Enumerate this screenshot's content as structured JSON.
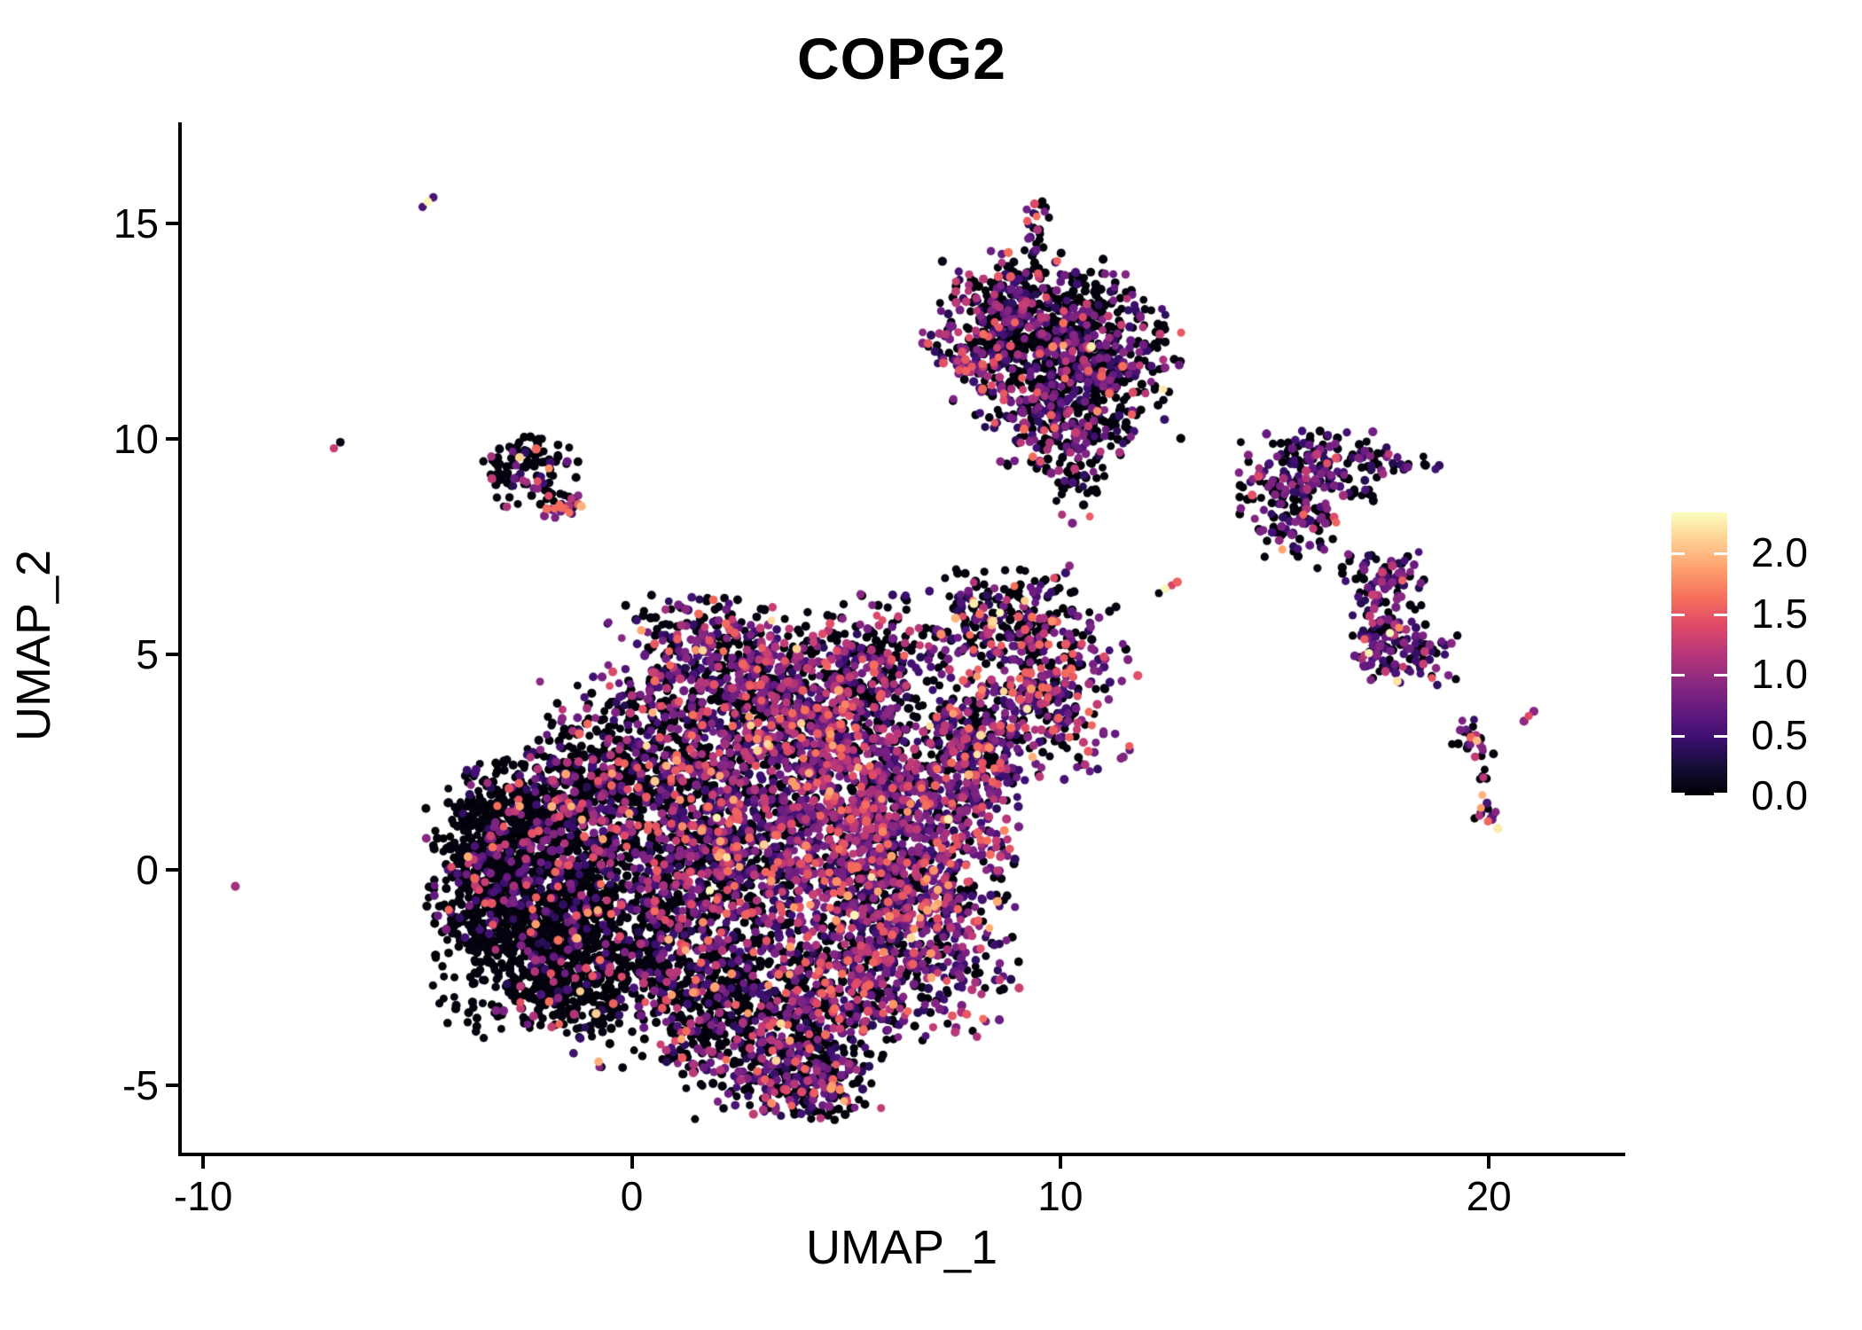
{
  "title": "COPG2",
  "chart_data": {
    "type": "scatter",
    "title": "COPG2",
    "xlabel": "UMAP_1",
    "ylabel": "UMAP_2",
    "x_ticks": [
      -10,
      0,
      10,
      20
    ],
    "x_tick_labels": [
      "-10",
      "0",
      "10",
      "20"
    ],
    "y_ticks": [
      -5,
      0,
      5,
      10,
      15
    ],
    "y_tick_labels": [
      "-5",
      "0",
      "5",
      "10",
      "15"
    ],
    "x_range": [
      -10.5,
      23.1
    ],
    "y_range": [
      -6.6,
      17.3
    ],
    "grid": false,
    "legend_position": "right",
    "point_radius_px": 4.7,
    "colorbar": {
      "colormap_name": "magma",
      "domain": [
        0,
        2.33
      ],
      "tick_values": [
        0.0,
        0.5,
        1.0,
        1.5,
        2.0
      ],
      "tick_labels": [
        "0.0",
        "0.5",
        "1.0",
        "1.5",
        "2.0"
      ],
      "stops": [
        {
          "t": 0.0,
          "color": "#000004"
        },
        {
          "t": 0.1,
          "color": "#140E36"
        },
        {
          "t": 0.2,
          "color": "#3B0F70"
        },
        {
          "t": 0.3,
          "color": "#641A80"
        },
        {
          "t": 0.4,
          "color": "#8C2981"
        },
        {
          "t": 0.5,
          "color": "#B73779"
        },
        {
          "t": 0.6,
          "color": "#DE4968"
        },
        {
          "t": 0.7,
          "color": "#F7705C"
        },
        {
          "t": 0.8,
          "color": "#FE9F6D"
        },
        {
          "t": 0.9,
          "color": "#FECE91"
        },
        {
          "t": 1.0,
          "color": "#FCFDBF"
        }
      ]
    },
    "expression_bins": [
      0,
      0.45,
      0.8,
      1.15,
      1.5,
      1.85,
      2.2
    ],
    "mixes": {
      "low": [
        0.87,
        0.05,
        0.035,
        0.02,
        0.018,
        0.005,
        0.002
      ],
      "lowmid": [
        0.73,
        0.09,
        0.08,
        0.05,
        0.038,
        0.01,
        0.002
      ],
      "mid": [
        0.56,
        0.15,
        0.14,
        0.08,
        0.055,
        0.012,
        0.003
      ],
      "midhi": [
        0.46,
        0.17,
        0.2,
        0.1,
        0.055,
        0.012,
        0.003
      ],
      "hi": [
        0.34,
        0.19,
        0.26,
        0.13,
        0.062,
        0.015,
        0.003
      ],
      "topmix": [
        0.62,
        0.13,
        0.16,
        0.055,
        0.027,
        0.006,
        0.002
      ],
      "topmixhi": [
        0.45,
        0.18,
        0.22,
        0.09,
        0.05,
        0.008,
        0.002
      ],
      "streakmix": [
        0.22,
        0.16,
        0.26,
        0.2,
        0.13,
        0.02,
        0.01
      ],
      "leftsmall": [
        0.74,
        0.07,
        0.07,
        0.06,
        0.04,
        0.01,
        0.01
      ],
      "leftsmallhi": [
        0.28,
        0.16,
        0.26,
        0.15,
        0.1,
        0.03,
        0.02
      ],
      "bridge": [
        0.55,
        0.12,
        0.15,
        0.08,
        0.07,
        0.02,
        0.01
      ],
      "bridgehi": [
        0.38,
        0.16,
        0.24,
        0.11,
        0.08,
        0.02,
        0.01
      ],
      "rightmix": [
        0.5,
        0.22,
        0.21,
        0.05,
        0.015,
        0.003,
        0.002
      ],
      "rightS": [
        0.4,
        0.27,
        0.25,
        0.06,
        0.015,
        0.003,
        0.002
      ],
      "farright": [
        0.48,
        0.19,
        0.19,
        0.08,
        0.04,
        0.01,
        0.01
      ],
      "farrighthi": [
        0.25,
        0.25,
        0.3,
        0.12,
        0.05,
        0.02,
        0.01
      ]
    },
    "clusters": [
      {
        "name": "main-left-core",
        "cx": -2.6,
        "cy": -0.6,
        "sx": 1.05,
        "sy": 1.5,
        "n": 900,
        "mix": "low"
      },
      {
        "name": "main-left-bottom",
        "cx": -1.2,
        "cy": -1.9,
        "sx": 1.15,
        "sy": 1.0,
        "n": 520,
        "mix": "low"
      },
      {
        "name": "main-left-edge",
        "cx": -3.4,
        "cy": 0.3,
        "sx": 0.6,
        "sy": 1.1,
        "n": 240,
        "mix": "low"
      },
      {
        "name": "main-left-upper",
        "cx": -1.6,
        "cy": 1.1,
        "sx": 1.1,
        "sy": 1.0,
        "n": 430,
        "mix": "lowmid"
      },
      {
        "name": "main-upper-ridge",
        "cx": 0.4,
        "cy": 2.7,
        "sx": 1.25,
        "sy": 0.85,
        "n": 420,
        "mix": "mid"
      },
      {
        "name": "main-top-lobe",
        "cx": 2.2,
        "cy": 4.7,
        "sx": 1.4,
        "sy": 0.8,
        "n": 520,
        "mix": "midhi"
      },
      {
        "name": "main-top-right",
        "cx": 4.0,
        "cy": 3.5,
        "sx": 1.15,
        "sy": 0.95,
        "n": 420,
        "mix": "midhi"
      },
      {
        "name": "main-center",
        "cx": 1.2,
        "cy": 0.2,
        "sx": 1.5,
        "sy": 1.3,
        "n": 700,
        "mix": "mid"
      },
      {
        "name": "main-center-right",
        "cx": 3.4,
        "cy": 1.2,
        "sx": 1.4,
        "sy": 1.5,
        "n": 780,
        "mix": "hi"
      },
      {
        "name": "main-right-band",
        "cx": 5.5,
        "cy": 1.4,
        "sx": 0.95,
        "sy": 1.8,
        "n": 580,
        "mix": "hi"
      },
      {
        "name": "main-bottom-left",
        "cx": 1.7,
        "cy": -2.7,
        "sx": 1.5,
        "sy": 1.0,
        "n": 500,
        "mix": "lowmid"
      },
      {
        "name": "main-bottom-tongue",
        "cx": 3.4,
        "cy": -4.0,
        "sx": 1.3,
        "sy": 0.85,
        "n": 430,
        "mix": "mid"
      },
      {
        "name": "main-bottom-tip",
        "cx": 4.0,
        "cy": -5.0,
        "sx": 0.7,
        "sy": 0.45,
        "n": 130,
        "mix": "mid"
      },
      {
        "name": "main-bottom-right",
        "cx": 5.2,
        "cy": -2.3,
        "sx": 1.0,
        "sy": 1.0,
        "n": 340,
        "mix": "hi"
      },
      {
        "name": "main-lowerright-lobe",
        "cx": 6.9,
        "cy": -0.7,
        "sx": 1.05,
        "sy": 1.55,
        "n": 620,
        "mix": "hi"
      },
      {
        "name": "main-wing-right",
        "cx": 7.6,
        "cy": 2.0,
        "sx": 0.8,
        "sy": 0.8,
        "n": 230,
        "mix": "hi"
      },
      {
        "name": "main-neck",
        "cx": 5.9,
        "cy": 5.0,
        "sx": 0.75,
        "sy": 0.7,
        "n": 170,
        "mix": "mid"
      },
      {
        "name": "top-cluster-upper",
        "cx": 9.8,
        "cy": 12.6,
        "sx": 1.3,
        "sy": 0.85,
        "n": 470,
        "mix": "topmix"
      },
      {
        "name": "top-cluster-left",
        "cx": 8.55,
        "cy": 12.9,
        "sx": 0.65,
        "sy": 0.6,
        "n": 150,
        "mix": "topmixhi"
      },
      {
        "name": "top-cluster-right",
        "cx": 10.7,
        "cy": 11.6,
        "sx": 1.05,
        "sy": 0.8,
        "n": 300,
        "mix": "topmix"
      },
      {
        "name": "top-cluster-lower",
        "cx": 9.9,
        "cy": 10.5,
        "sx": 0.9,
        "sy": 0.65,
        "n": 210,
        "mix": "topmix"
      },
      {
        "name": "top-cluster-tail",
        "cx": 10.35,
        "cy": 9.3,
        "sx": 0.3,
        "sy": 0.6,
        "n": 55,
        "mix": "topmix"
      },
      {
        "name": "top-cluster-arm",
        "cx": 8.0,
        "cy": 11.5,
        "sx": 0.75,
        "sy": 0.22,
        "rot": -35,
        "n": 60,
        "mix": "streakmix"
      },
      {
        "name": "top-cluster-strand",
        "cx": 9.45,
        "cy": 14.5,
        "sx": 0.16,
        "sy": 0.6,
        "n": 26,
        "mix": "topmix"
      },
      {
        "name": "top-cluster-tip",
        "cx": 9.35,
        "cy": 15.3,
        "sx": 0.2,
        "sy": 0.15,
        "n": 7,
        "mix": "streakmix"
      },
      {
        "name": "left-cluster-core",
        "cx": -2.4,
        "cy": 9.2,
        "sx": 0.55,
        "sy": 0.42,
        "n": 95,
        "mix": "leftsmall"
      },
      {
        "name": "left-cluster-lower",
        "cx": -1.65,
        "cy": 8.45,
        "sx": 0.3,
        "sy": 0.22,
        "n": 28,
        "mix": "leftsmallhi"
      },
      {
        "name": "left-cluster-arm",
        "cx": -3.05,
        "cy": 8.9,
        "sx": 0.28,
        "sy": 0.15,
        "rot": 20,
        "n": 10,
        "mix": "leftsmall"
      },
      {
        "name": "bridge-upper",
        "cx": 8.8,
        "cy": 5.9,
        "sx": 0.95,
        "sy": 0.6,
        "n": 210,
        "mix": "bridge"
      },
      {
        "name": "bridge-lower",
        "cx": 9.4,
        "cy": 4.0,
        "sx": 1.15,
        "sy": 0.95,
        "n": 370,
        "mix": "bridgehi"
      },
      {
        "name": "bridge-west",
        "cx": 7.9,
        "cy": 3.1,
        "sx": 0.6,
        "sy": 0.6,
        "n": 120,
        "mix": "hi"
      },
      {
        "name": "right-cluster-core",
        "cx": 15.9,
        "cy": 9.25,
        "sx": 0.85,
        "sy": 0.5,
        "n": 170,
        "mix": "rightmix"
      },
      {
        "name": "right-cluster-arm",
        "cx": 17.35,
        "cy": 9.55,
        "sx": 0.75,
        "sy": 0.16,
        "rot": -14,
        "n": 40,
        "mix": "rightmix"
      },
      {
        "name": "right-cluster-lower",
        "cx": 15.6,
        "cy": 8.2,
        "sx": 0.55,
        "sy": 0.45,
        "n": 70,
        "mix": "rightmix"
      },
      {
        "name": "right-cluster-scatter",
        "cx": 15.1,
        "cy": 7.9,
        "sx": 0.55,
        "sy": 0.5,
        "n": 12,
        "mix": "low"
      },
      {
        "name": "rightS-top",
        "cx": 17.5,
        "cy": 6.8,
        "sx": 0.5,
        "sy": 0.3,
        "n": 55,
        "mix": "rightS"
      },
      {
        "name": "rightS-mid",
        "cx": 17.6,
        "cy": 5.7,
        "sx": 0.45,
        "sy": 0.5,
        "n": 85,
        "mix": "rightS"
      },
      {
        "name": "rightS-bottom",
        "cx": 18.3,
        "cy": 5.0,
        "sx": 0.55,
        "sy": 0.35,
        "n": 75,
        "mix": "rightS"
      },
      {
        "name": "rightS-tail",
        "cx": 17.2,
        "cy": 4.85,
        "sx": 0.18,
        "sy": 0.25,
        "n": 12,
        "mix": "rightS"
      },
      {
        "name": "farright-Y",
        "cx": 19.7,
        "cy": 3.05,
        "sx": 0.33,
        "sy": 0.28,
        "n": 22,
        "mix": "farright"
      },
      {
        "name": "farright-drip",
        "cx": 19.9,
        "cy": 2.2,
        "sx": 0.1,
        "sy": 0.38,
        "n": 7,
        "mix": "low"
      },
      {
        "name": "farright-bottom",
        "cx": 19.85,
        "cy": 1.3,
        "sx": 0.24,
        "sy": 0.22,
        "n": 13,
        "mix": "farrighthi"
      }
    ],
    "extra_points": [
      [
        -4.88,
        15.38,
        0.55
      ],
      [
        -4.76,
        15.5,
        2.3
      ],
      [
        -4.63,
        15.6,
        0.55
      ],
      [
        -6.95,
        9.78,
        1.25
      ],
      [
        -6.8,
        9.92,
        0.05
      ],
      [
        -9.25,
        -0.38,
        1.05
      ],
      [
        12.3,
        6.42,
        0.05
      ],
      [
        12.45,
        6.52,
        2.3
      ],
      [
        12.6,
        6.6,
        1.35
      ],
      [
        12.73,
        6.68,
        1.55
      ],
      [
        20.82,
        3.45,
        0.95
      ],
      [
        20.93,
        3.57,
        1.4
      ],
      [
        21.05,
        3.68,
        0.9
      ],
      [
        19.72,
        3.0,
        2.0
      ],
      [
        19.58,
        3.08,
        1.55
      ],
      [
        11.3,
        6.1,
        0.05
      ],
      [
        11.15,
        6.0,
        0.05
      ],
      [
        16.0,
        7.0,
        0.05
      ],
      [
        14.75,
        8.35,
        0.7
      ],
      [
        14.5,
        8.6,
        0.05
      ]
    ]
  }
}
